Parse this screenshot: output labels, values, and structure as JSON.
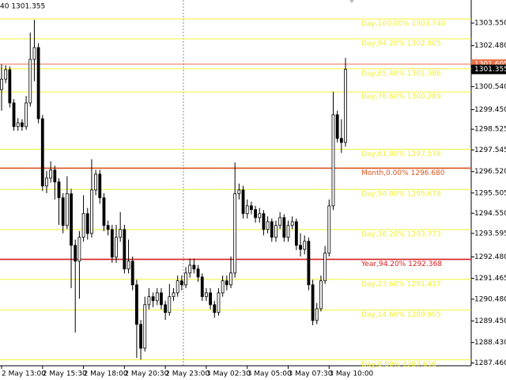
{
  "chart_data": {
    "type": "candlestick",
    "header": "40 1301.355",
    "categories": [
      "2 May 13:00",
      null,
      null,
      null,
      null,
      null,
      null,
      null,
      null,
      null,
      "2 May 15:30",
      null,
      null,
      null,
      null,
      null,
      null,
      null,
      null,
      null,
      "2 May 18:00",
      null,
      null,
      null,
      null,
      null,
      null,
      null,
      null,
      null,
      "2 May 20:30",
      null,
      null,
      null,
      null,
      null,
      null,
      null,
      null,
      null,
      "2 May 23:00",
      null,
      null,
      null,
      null,
      null,
      null,
      null,
      null,
      null,
      "3 May 02:30",
      null,
      null,
      null,
      null,
      null,
      null,
      null,
      null,
      null,
      "3 May 05:00",
      null,
      null,
      null,
      null,
      null,
      null,
      null,
      null,
      null,
      "3 May 07:30",
      null,
      null,
      null,
      null,
      null,
      null,
      null,
      null,
      null,
      "3 May 10:00",
      null,
      null,
      null,
      null
    ],
    "open": [
      1300.4,
      1300.89,
      1301.34,
      1299.77,
      1298.65,
      1298.83,
      1298.65,
      1299.77,
      1301.83,
      1302.39,
      1299.02,
      1295.84,
      1296.21,
      1296.59,
      1296.03,
      1295.28,
      1293.97,
      1295.47,
      1293.03,
      1292.28,
      1293.41,
      1294.53,
      1293.59,
      1295.65,
      1296.4,
      1295.28,
      1293.97,
      1293.78,
      1292.47,
      1293.41,
      1293.78,
      1291.91,
      1292.28,
      1291.16,
      1289.29,
      1288.16,
      1290.22,
      1290.6,
      1290.41,
      1290.78,
      1290.22,
      1289.85,
      1290.6,
      1290.78,
      1291.35,
      1291.16,
      1291.72,
      1292.09,
      1291.91,
      1291.53,
      1290.6,
      1290.78,
      1290.22,
      1289.85,
      1290.78,
      1291.35,
      1291.16,
      1291.72,
      1295.47,
      1295.65,
      1294.53,
      1294.9,
      1294.72,
      1294.34,
      1294.53,
      1293.78,
      1294.15,
      1293.41,
      1293.97,
      1294.34,
      1293.41,
      1293.97,
      1294.15,
      1293.03,
      1292.84,
      1293.22,
      1291.16,
      1289.47,
      1290.03,
      1291.35,
      1292.66,
      1294.9,
      1299.21,
      1298.09,
      1297.9
    ],
    "high": [
      1301.6,
      1301.55,
      1301.5,
      1299.95,
      1299.05,
      1299.0,
      1300.1,
      1303.1,
      1303.7,
      1302.6,
      1299.2,
      1296.55,
      1297.0,
      1296.8,
      1296.2,
      1295.5,
      1296.3,
      1295.7,
      1293.3,
      1293.7,
      1295.4,
      1294.8,
      1297.1,
      1296.6,
      1296.6,
      1295.5,
      1294.2,
      1294.0,
      1294.0,
      1294.6,
      1294.0,
      1293.3,
      1292.5,
      1291.4,
      1289.5,
      1290.6,
      1291.0,
      1290.8,
      1291.0,
      1291.0,
      1290.4,
      1291.2,
      1291.0,
      1291.6,
      1291.6,
      1292.0,
      1292.4,
      1292.4,
      1292.1,
      1291.7,
      1291.0,
      1291.0,
      1290.4,
      1291.0,
      1291.6,
      1291.6,
      1292.5,
      1296.95,
      1295.95,
      1295.85,
      1295.2,
      1295.1,
      1294.9,
      1294.8,
      1294.7,
      1294.4,
      1294.3,
      1294.2,
      1294.6,
      1294.5,
      1294.2,
      1294.4,
      1294.3,
      1293.6,
      1293.5,
      1293.4,
      1291.4,
      1290.3,
      1291.6,
      1293.0,
      1295.2,
      1300.3,
      1299.4,
      1299.0,
      1301.9
    ],
    "low": [
      1299.4,
      1300.7,
      1299.55,
      1298.45,
      1298.45,
      1298.45,
      1298.5,
      1299.6,
      1300.8,
      1298.8,
      1295.6,
      1295.5,
      1296.0,
      1295.2,
      1294.0,
      1293.6,
      1293.8,
      1291.0,
      1288.9,
      1290.5,
      1293.2,
      1293.3,
      1293.4,
      1295.4,
      1295.0,
      1293.7,
      1293.5,
      1292.2,
      1292.2,
      1293.2,
      1291.7,
      1291.7,
      1290.9,
      1287.7,
      1287.62,
      1288.0,
      1290.0,
      1290.1,
      1290.2,
      1290.0,
      1289.5,
      1289.7,
      1290.4,
      1290.6,
      1290.9,
      1291.0,
      1291.5,
      1291.7,
      1291.3,
      1290.4,
      1290.4,
      1290.0,
      1289.6,
      1289.7,
      1290.6,
      1290.9,
      1291.0,
      1291.5,
      1295.2,
      1294.3,
      1294.3,
      1294.5,
      1294.1,
      1294.1,
      1293.5,
      1293.6,
      1293.2,
      1293.2,
      1293.8,
      1293.2,
      1293.2,
      1293.8,
      1292.8,
      1292.5,
      1292.6,
      1290.9,
      1289.25,
      1289.3,
      1289.9,
      1291.2,
      1292.5,
      1294.7,
      1297.9,
      1297.4,
      1297.7
    ],
    "close": [
      1300.89,
      1301.34,
      1299.77,
      1298.65,
      1298.83,
      1298.65,
      1299.77,
      1301.83,
      1302.39,
      1299.02,
      1295.84,
      1296.21,
      1296.59,
      1296.03,
      1295.28,
      1293.97,
      1295.47,
      1293.03,
      1292.28,
      1293.41,
      1294.53,
      1293.59,
      1295.65,
      1296.4,
      1295.28,
      1293.97,
      1293.78,
      1292.47,
      1293.41,
      1293.78,
      1291.91,
      1292.28,
      1291.16,
      1289.29,
      1288.16,
      1290.22,
      1290.6,
      1290.41,
      1290.78,
      1290.22,
      1289.85,
      1290.6,
      1290.78,
      1291.35,
      1291.16,
      1291.72,
      1292.09,
      1291.91,
      1291.53,
      1290.6,
      1290.78,
      1290.22,
      1289.85,
      1290.78,
      1291.35,
      1291.16,
      1291.72,
      1295.47,
      1295.65,
      1294.53,
      1294.9,
      1294.72,
      1294.34,
      1294.53,
      1293.78,
      1294.15,
      1293.41,
      1293.97,
      1294.34,
      1293.41,
      1293.97,
      1294.15,
      1293.03,
      1292.84,
      1293.22,
      1291.16,
      1289.47,
      1290.03,
      1291.35,
      1292.66,
      1294.9,
      1299.21,
      1298.09,
      1297.9,
      1301.36
    ],
    "ylim": [
      1287.33,
      1304.64
    ],
    "yticks": [
      {
        "value": 1303.55,
        "label": "1303.550"
      },
      {
        "value": 1302.48,
        "label": "1302.480"
      },
      {
        "value": 1300.54,
        "label": "1300.540"
      },
      {
        "value": 1299.45,
        "label": "1299.450"
      },
      1298.525,
      1297.545,
      {
        "value": 1296.52,
        "label": "1296.520"
      },
      1295.505,
      {
        "value": 1294.55,
        "label": "1294.550"
      },
      1293.595,
      {
        "value": 1292.48,
        "label": "1292.480"
      },
      1291.465,
      {
        "value": 1290.48,
        "label": "1290.480"
      },
      {
        "value": 1289.45,
        "label": "1289.450"
      },
      {
        "value": 1288.43,
        "label": "1288.430"
      },
      {
        "value": 1287.46,
        "label": "1287.460"
      }
    ],
    "levels": [
      {
        "label": "Day,100.00% 1303.740",
        "value": 1303.74,
        "color": "#f0f032"
      },
      {
        "label": "Day,94.20% 1302.805",
        "value": 1302.805,
        "color": "#f0f032"
      },
      {
        "label": "Day,85.40% 1301.386",
        "value": 1301.386,
        "color": "#f0f032"
      },
      {
        "label": "Day,78.60% 1300.289",
        "value": 1300.289,
        "color": "#f0f032"
      },
      {
        "label": "Day,61.80% 1297.578",
        "value": 1297.578,
        "color": "#f0f032"
      },
      {
        "label": "Month,0.00% 1296.680",
        "value": 1296.68,
        "color": "#d9531e"
      },
      {
        "label": "Day,50.00% 1295.678",
        "value": 1295.678,
        "color": "#f0f032"
      },
      {
        "label": "Day,38.20% 1293.773",
        "value": 1293.773,
        "color": "#f0f032"
      },
      {
        "label": "Year,94.20% 1292.368",
        "value": 1292.368,
        "color": "#d91e1e"
      },
      {
        "label": "Day,23.60% 1291.417",
        "value": 1291.417,
        "color": "#f0f032"
      },
      {
        "label": "Day,14.60% 1289.965",
        "value": 1289.965,
        "color": "#f0f032"
      },
      {
        "label": "Day,0.00% 1287.616",
        "value": 1287.616,
        "color": "#f0f032"
      }
    ],
    "price_line": {
      "value": 1301.605,
      "label": "1301.605",
      "color": "#e8734a"
    },
    "current_price": {
      "value": 1301.355,
      "label": "1301.355"
    }
  }
}
